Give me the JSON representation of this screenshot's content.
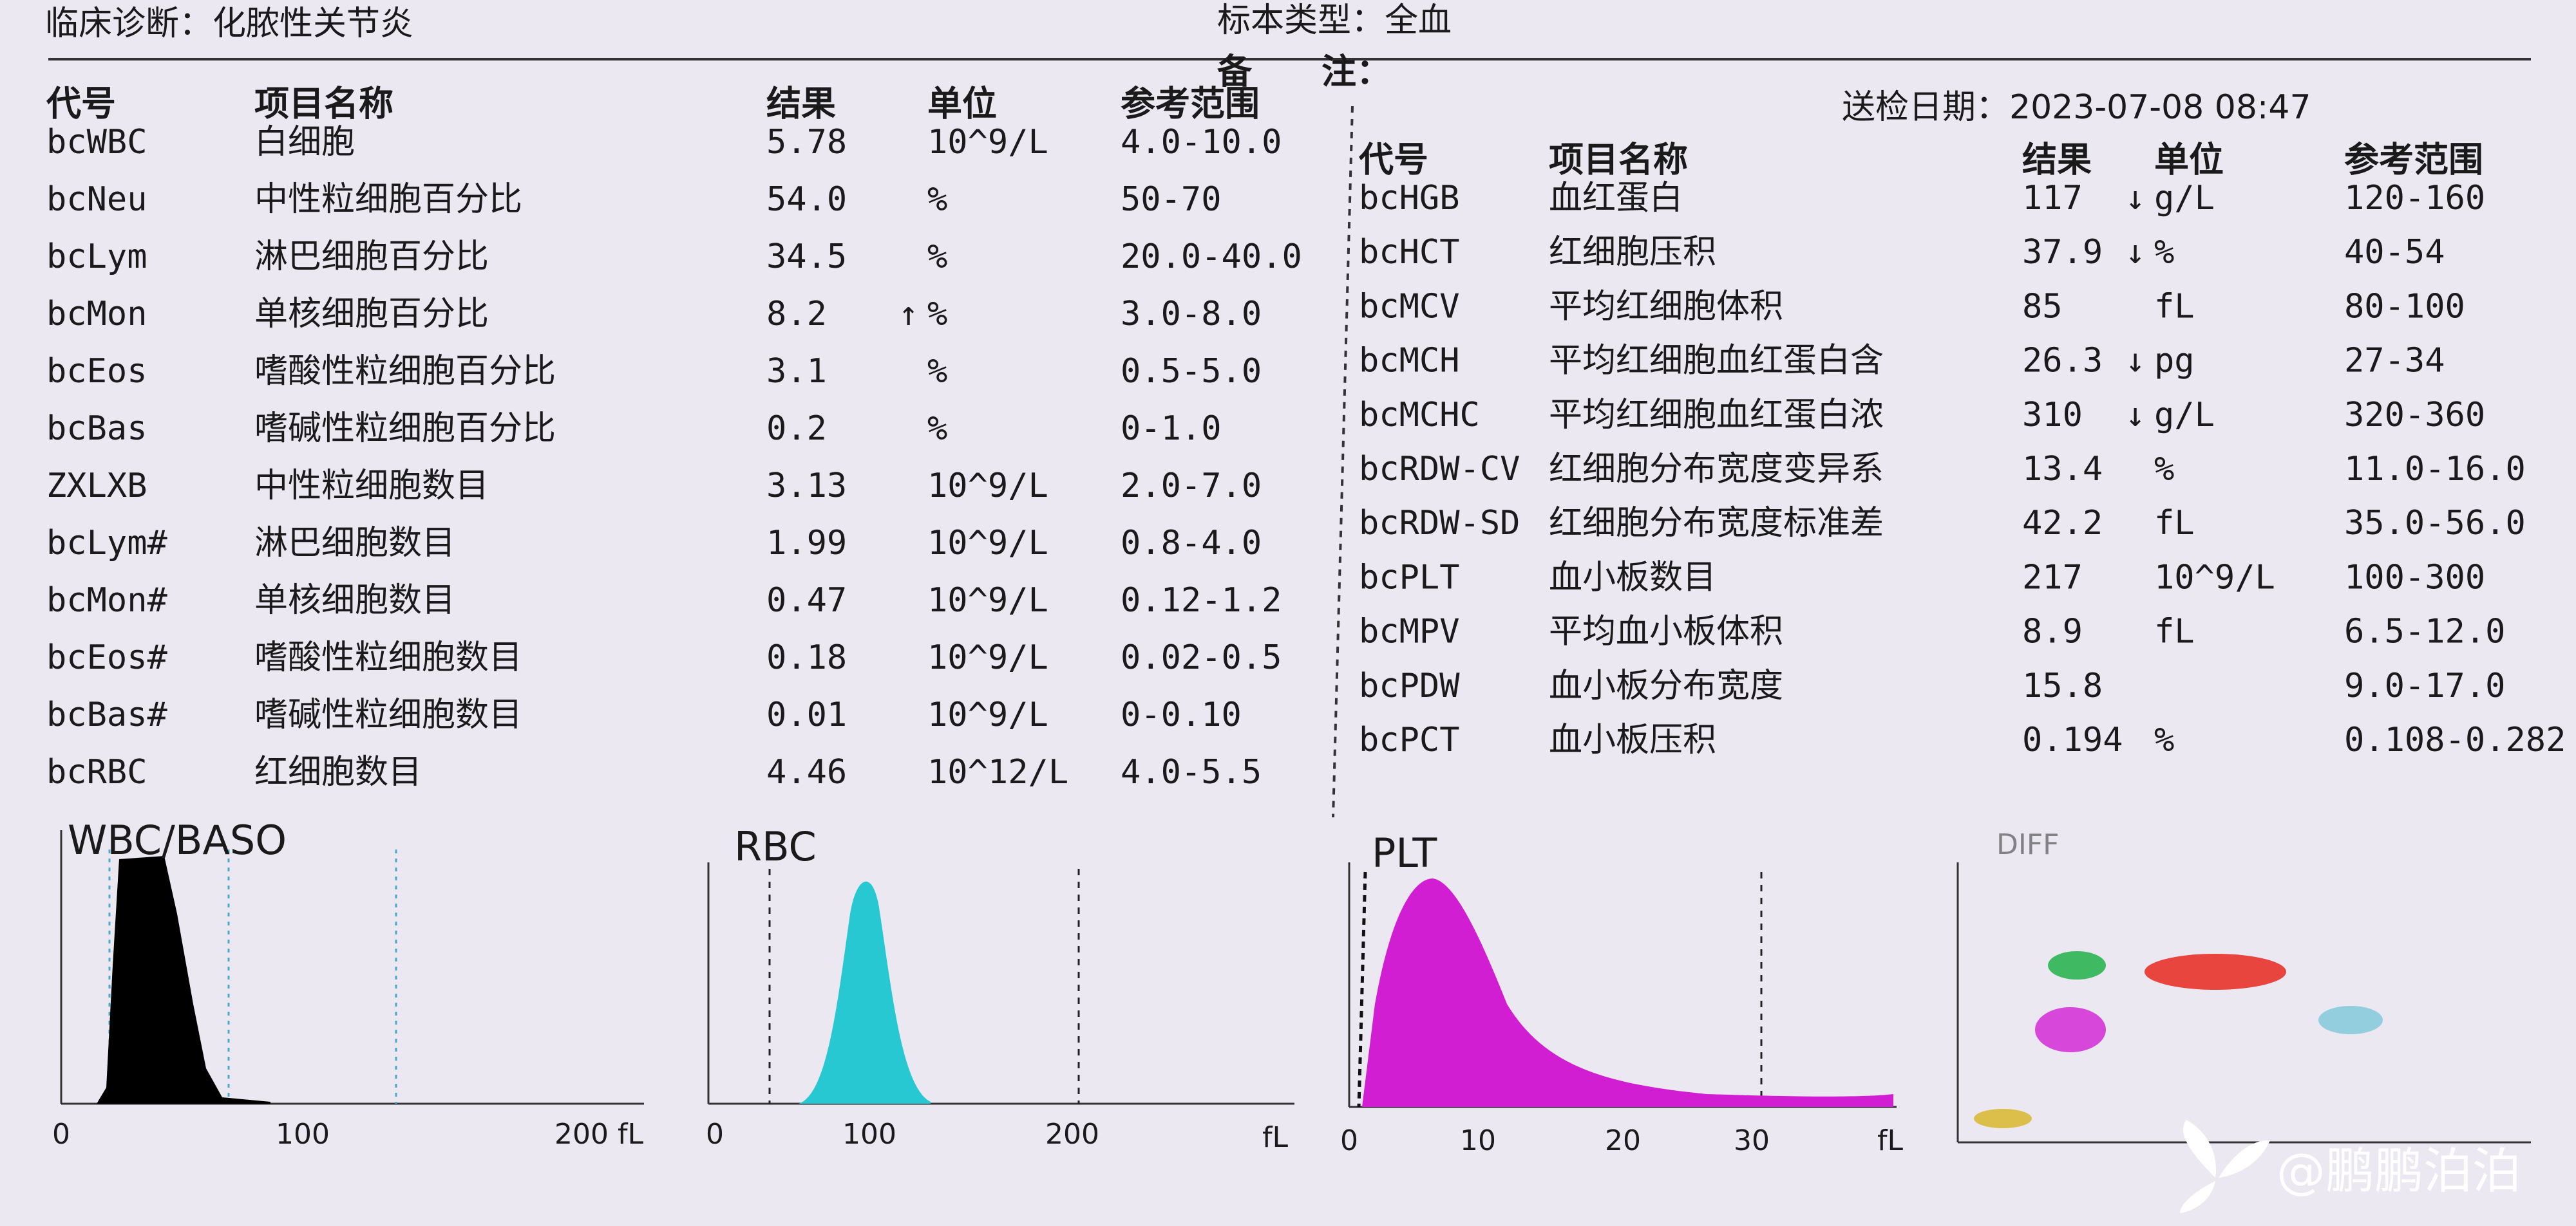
{
  "header": {
    "diagnosis": "临床诊断：化脓性关节炎",
    "sample_type": "标本类型：全血",
    "note": "备　　注：",
    "date": "送检日期：2023-07-08 08:47"
  },
  "columns": {
    "code": "代号",
    "name": "项目名称",
    "result": "结果",
    "unit": "单位",
    "range": "参考范围"
  },
  "left_table": {
    "rows": [
      {
        "code": "bcWBC",
        "name": "白细胞",
        "result": "5.78",
        "unit": "10^9/L",
        "range": "4.0-10.0"
      },
      {
        "code": "bcNeu",
        "name": "中性粒细胞百分比",
        "result": "54.0",
        "unit": "%",
        "range": "50-70"
      },
      {
        "code": "bcLym",
        "name": "淋巴细胞百分比",
        "result": "34.5",
        "unit": "%",
        "range": "20.0-40.0"
      },
      {
        "code": "bcMon",
        "name": "单核细胞百分比",
        "result": "8.2",
        "flag": "↑",
        "unit": "%",
        "range": "3.0-8.0"
      },
      {
        "code": "bcEos",
        "name": "嗜酸性粒细胞百分比",
        "result": "3.1",
        "unit": "%",
        "range": "0.5-5.0"
      },
      {
        "code": "bcBas",
        "name": "嗜碱性粒细胞百分比",
        "result": "0.2",
        "unit": "%",
        "range": "0-1.0"
      },
      {
        "code": "ZXLXB",
        "name": "中性粒细胞数目",
        "result": "3.13",
        "unit": "10^9/L",
        "range": "2.0-7.0"
      },
      {
        "code": "bcLym#",
        "name": "淋巴细胞数目",
        "result": "1.99",
        "unit": "10^9/L",
        "range": "0.8-4.0"
      },
      {
        "code": "bcMon#",
        "name": "单核细胞数目",
        "result": "0.47",
        "unit": "10^9/L",
        "range": "0.12-1.2"
      },
      {
        "code": "bcEos#",
        "name": "嗜酸性粒细胞数目",
        "result": "0.18",
        "unit": "10^9/L",
        "range": "0.02-0.5"
      },
      {
        "code": "bcBas#",
        "name": "嗜碱性粒细胞数目",
        "result": "0.01",
        "unit": "10^9/L",
        "range": "0-0.10"
      },
      {
        "code": "bcRBC",
        "name": "红细胞数目",
        "result": "4.46",
        "unit": "10^12/L",
        "range": "4.0-5.5"
      }
    ]
  },
  "right_table": {
    "rows": [
      {
        "code": "bcHGB",
        "name": "血红蛋白",
        "result": "117",
        "flag": "↓",
        "unit": "g/L",
        "range": "120-160"
      },
      {
        "code": "bcHCT",
        "name": "红细胞压积",
        "result": "37.9",
        "flag": "↓",
        "unit": "%",
        "range": "40-54"
      },
      {
        "code": "bcMCV",
        "name": "平均红细胞体积",
        "result": "85",
        "unit": "fL",
        "range": "80-100"
      },
      {
        "code": "bcMCH",
        "name": "平均红细胞血红蛋白含",
        "result": "26.3",
        "flag": "↓",
        "unit": "pg",
        "range": "27-34"
      },
      {
        "code": "bcMCHC",
        "name": "平均红细胞血红蛋白浓",
        "result": "310",
        "flag": "↓",
        "unit": "g/L",
        "range": "320-360"
      },
      {
        "code": "bcRDW-CV",
        "name": "红细胞分布宽度变异系",
        "result": "13.4",
        "unit": "%",
        "range": "11.0-16.0"
      },
      {
        "code": "bcRDW-SD",
        "name": "红细胞分布宽度标准差",
        "result": "42.2",
        "unit": "fL",
        "range": "35.0-56.0"
      },
      {
        "code": "bcPLT",
        "name": "血小板数目",
        "result": "217",
        "unit": "10^9/L",
        "range": "100-300"
      },
      {
        "code": "bcMPV",
        "name": "平均血小板体积",
        "result": "8.9",
        "unit": "fL",
        "range": "6.5-12.0"
      },
      {
        "code": "bcPDW",
        "name": "血小板分布宽度",
        "result": "15.8",
        "range": "9.0-17.0"
      },
      {
        "code": "bcPCT",
        "name": "血小板压积",
        "result": "0.194",
        "unit": "%",
        "range": "0.108-0.282"
      }
    ]
  },
  "histograms": {
    "wbc": {
      "title": "WBC/BASO",
      "ticks": [
        "0",
        "100",
        "200 fL"
      ]
    },
    "rbc": {
      "title": "RBC",
      "ticks": [
        "0",
        "100",
        "200",
        "fL"
      ]
    },
    "plt": {
      "title": "PLT",
      "ticks": [
        "0",
        "10",
        "20",
        "30",
        "fL"
      ]
    },
    "diff": {
      "title": "DIFF"
    }
  },
  "watermark": "@鹏鹏泊泊"
}
